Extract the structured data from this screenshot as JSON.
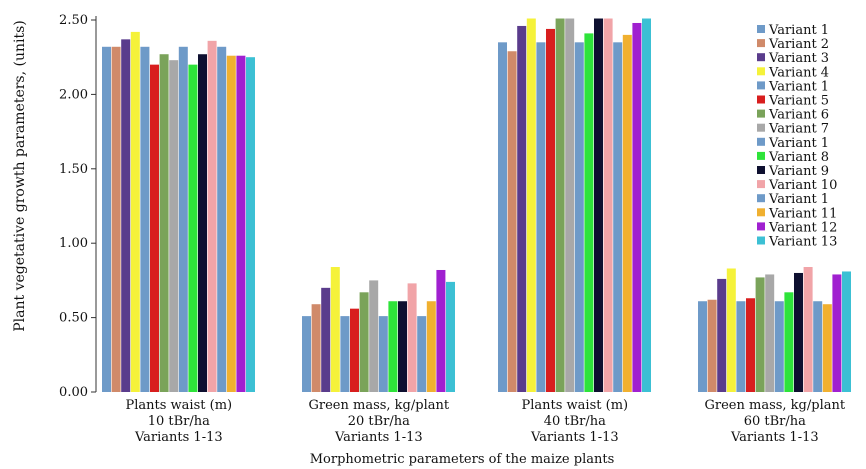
{
  "chart_data": {
    "type": "bar",
    "ylabel": "Plant vegetative growth parameters, (units)",
    "xlabel": "Morphometric parameters of the maize plants",
    "ylim": [
      0,
      2.5
    ],
    "yticks": [
      "0.00",
      "0.50",
      "1.00",
      "1.50",
      "2.00",
      "2.50"
    ],
    "legend_position": "right",
    "grid": false,
    "categories": [
      [
        "Plants waist (m)",
        "10 tBr/ha",
        "Variants 1-13"
      ],
      [
        "Green mass, kg/plant",
        "20 tBr/ha",
        "Variants 1-13"
      ],
      [
        "Plants waist (m)",
        "40 tBr/ha",
        "Variants 1-13"
      ],
      [
        "Green mass, kg/plant",
        "60 tBr/ha",
        "Variants 1-13"
      ]
    ],
    "series": [
      {
        "name": "Variant 1",
        "color": "#6e9ac8",
        "values": [
          2.32,
          0.51,
          2.35,
          0.61
        ]
      },
      {
        "name": "Variant 2",
        "color": "#d08a6a",
        "values": [
          2.32,
          0.59,
          2.29,
          0.62
        ]
      },
      {
        "name": "Variant 3",
        "color": "#5a3c8c",
        "values": [
          2.37,
          0.7,
          2.46,
          0.76
        ]
      },
      {
        "name": "Variant 4",
        "color": "#f5f23a",
        "values": [
          2.42,
          0.84,
          2.51,
          0.83
        ]
      },
      {
        "name": "Variant 1",
        "color": "#6e9ac8",
        "values": [
          2.32,
          0.51,
          2.35,
          0.61
        ]
      },
      {
        "name": "Variant 5",
        "color": "#d81e1e",
        "values": [
          2.2,
          0.56,
          2.44,
          0.63
        ]
      },
      {
        "name": "Variant 6",
        "color": "#7aa35a",
        "values": [
          2.27,
          0.67,
          2.51,
          0.77
        ]
      },
      {
        "name": "Variant 7",
        "color": "#a8a8a8",
        "values": [
          2.23,
          0.75,
          2.51,
          0.79
        ]
      },
      {
        "name": "Variant 1",
        "color": "#6e9ac8",
        "values": [
          2.32,
          0.51,
          2.35,
          0.61
        ]
      },
      {
        "name": "Variant 8",
        "color": "#2ee33a",
        "values": [
          2.2,
          0.61,
          2.41,
          0.67
        ]
      },
      {
        "name": "Variant 9",
        "color": "#0e1030",
        "values": [
          2.27,
          0.61,
          2.51,
          0.8
        ]
      },
      {
        "name": "Variant 10",
        "color": "#f1a4a8",
        "values": [
          2.36,
          0.73,
          2.51,
          0.84
        ]
      },
      {
        "name": "Variant 1",
        "color": "#6e9ac8",
        "values": [
          2.32,
          0.51,
          2.35,
          0.61
        ]
      },
      {
        "name": "Variant 11",
        "color": "#f0b030",
        "values": [
          2.26,
          0.61,
          2.4,
          0.59
        ]
      },
      {
        "name": "Variant 12",
        "color": "#a020d0",
        "values": [
          2.26,
          0.82,
          2.48,
          0.79
        ]
      },
      {
        "name": "Variant 13",
        "color": "#3cc0d4",
        "values": [
          2.25,
          0.74,
          2.51,
          0.81
        ]
      }
    ]
  }
}
